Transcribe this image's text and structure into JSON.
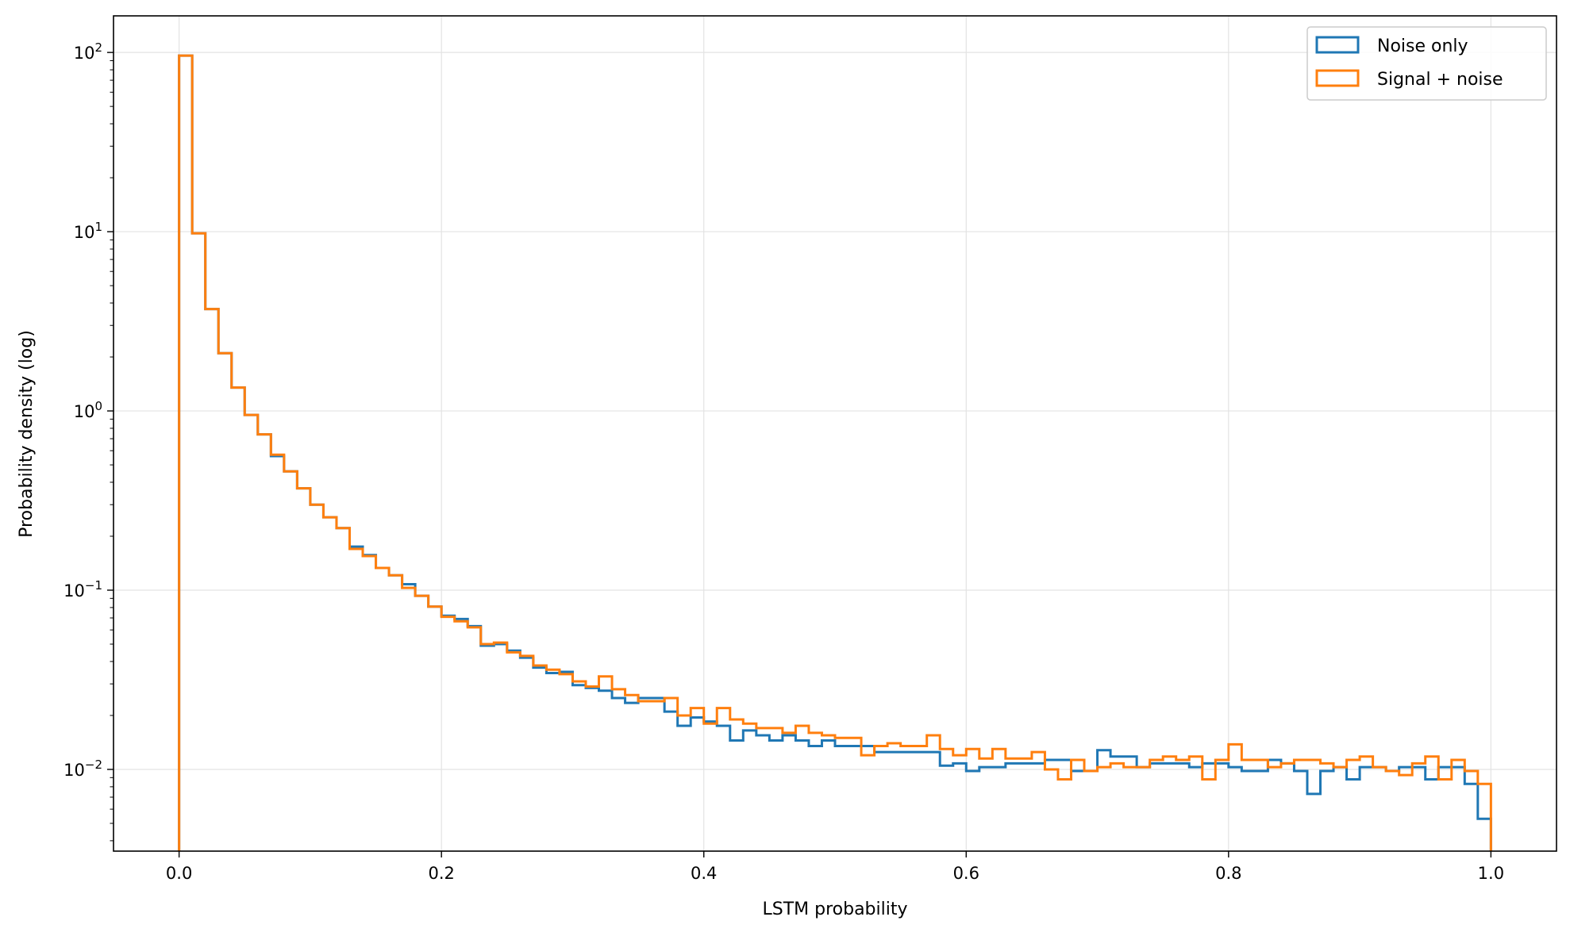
{
  "chart_data": {
    "type": "histogram-step",
    "title": "",
    "xlabel": "LSTM probability",
    "ylabel": "Probability density (log)",
    "xscale": "linear",
    "yscale": "log",
    "xlim": [
      -0.05,
      1.05
    ],
    "ylim": [
      0.0035,
      160
    ],
    "grid": true,
    "legend_position": "top-right",
    "x_ticks": [
      0.0,
      0.2,
      0.4,
      0.6,
      0.8,
      1.0
    ],
    "x_tick_labels": [
      "0.0",
      "0.2",
      "0.4",
      "0.6",
      "0.8",
      "1.0"
    ],
    "y_ticks": [
      0.01,
      0.1,
      1,
      10,
      100
    ],
    "y_tick_labels": [
      {
        "base": "10",
        "exp": "−2"
      },
      {
        "base": "10",
        "exp": "−1"
      },
      {
        "base": "10",
        "exp": "0"
      },
      {
        "base": "10",
        "exp": "1"
      },
      {
        "base": "10",
        "exp": "2"
      }
    ],
    "bins": 100,
    "bin_start": 0.0,
    "bin_width": 0.01,
    "series": [
      {
        "name": "Noise only",
        "color": "#1f77b4",
        "values": [
          96,
          9.8,
          3.7,
          2.1,
          1.35,
          0.95,
          0.74,
          0.56,
          0.46,
          0.37,
          0.3,
          0.255,
          0.222,
          0.175,
          0.157,
          0.133,
          0.121,
          0.108,
          0.093,
          0.081,
          0.072,
          0.069,
          0.063,
          0.049,
          0.05,
          0.046,
          0.042,
          0.037,
          0.0345,
          0.035,
          0.0295,
          0.0285,
          0.0275,
          0.025,
          0.0235,
          0.025,
          0.025,
          0.021,
          0.0175,
          0.0195,
          0.0185,
          0.0175,
          0.0145,
          0.0165,
          0.0155,
          0.0145,
          0.0155,
          0.0145,
          0.0135,
          0.0145,
          0.0135,
          0.0135,
          0.0135,
          0.0125,
          0.0125,
          0.0125,
          0.0125,
          0.0125,
          0.0105,
          0.0108,
          0.0098,
          0.0103,
          0.0103,
          0.0108,
          0.0108,
          0.0108,
          0.0113,
          0.0113,
          0.0098,
          0.0098,
          0.0128,
          0.0118,
          0.0118,
          0.0103,
          0.0108,
          0.0108,
          0.0108,
          0.0103,
          0.0108,
          0.0108,
          0.0103,
          0.0098,
          0.0098,
          0.0113,
          0.0108,
          0.0098,
          0.0073,
          0.0098,
          0.0103,
          0.0088,
          0.0103,
          0.0103,
          0.0098,
          0.0103,
          0.0103,
          0.0088,
          0.0103,
          0.0103,
          0.0083,
          0.0053
        ]
      },
      {
        "name": "Signal + noise",
        "color": "#ff7f0e",
        "values": [
          96,
          9.8,
          3.7,
          2.1,
          1.35,
          0.95,
          0.74,
          0.57,
          0.46,
          0.37,
          0.3,
          0.255,
          0.222,
          0.17,
          0.155,
          0.133,
          0.121,
          0.103,
          0.093,
          0.081,
          0.071,
          0.067,
          0.062,
          0.05,
          0.051,
          0.045,
          0.043,
          0.038,
          0.036,
          0.034,
          0.031,
          0.029,
          0.033,
          0.028,
          0.026,
          0.024,
          0.024,
          0.025,
          0.02,
          0.022,
          0.018,
          0.022,
          0.019,
          0.018,
          0.017,
          0.017,
          0.016,
          0.0175,
          0.016,
          0.0155,
          0.015,
          0.015,
          0.012,
          0.0135,
          0.014,
          0.0135,
          0.0135,
          0.0155,
          0.013,
          0.012,
          0.013,
          0.0115,
          0.013,
          0.0115,
          0.0115,
          0.0125,
          0.01,
          0.0088,
          0.0113,
          0.0098,
          0.0103,
          0.0108,
          0.0103,
          0.0103,
          0.0113,
          0.0118,
          0.0113,
          0.0118,
          0.0088,
          0.0113,
          0.0138,
          0.0113,
          0.0113,
          0.0103,
          0.0108,
          0.0113,
          0.0113,
          0.0108,
          0.0103,
          0.0113,
          0.0118,
          0.0103,
          0.0098,
          0.0093,
          0.0108,
          0.0118,
          0.0088,
          0.0113,
          0.0098,
          0.0083
        ]
      }
    ]
  }
}
